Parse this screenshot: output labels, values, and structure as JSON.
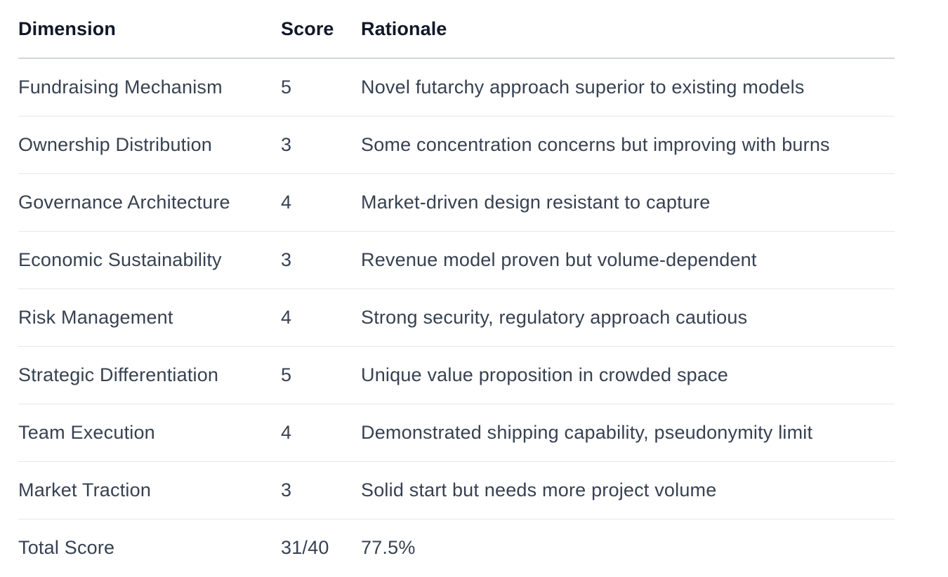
{
  "table": {
    "headers": {
      "dimension": "Dimension",
      "score": "Score",
      "rationale": "Rationale"
    },
    "rows": [
      {
        "dimension": "Fundraising Mechanism",
        "score": "5",
        "rationale": "Novel futarchy approach superior to existing models"
      },
      {
        "dimension": "Ownership Distribution",
        "score": "3",
        "rationale": "Some concentration concerns but improving with burns"
      },
      {
        "dimension": "Governance Architecture",
        "score": "4",
        "rationale": "Market-driven design resistant to capture"
      },
      {
        "dimension": "Economic Sustainability",
        "score": "3",
        "rationale": "Revenue model proven but volume-dependent"
      },
      {
        "dimension": "Risk Management",
        "score": "4",
        "rationale": "Strong security, regulatory approach cautious"
      },
      {
        "dimension": "Strategic Differentiation",
        "score": "5",
        "rationale": "Unique value proposition in crowded space"
      },
      {
        "dimension": "Team Execution",
        "score": "4",
        "rationale": "Demonstrated shipping capability, pseudonymity limit"
      },
      {
        "dimension": "Market Traction",
        "score": "3",
        "rationale": "Solid start but needs more project volume"
      },
      {
        "dimension": "Total Score",
        "score": "31/40",
        "rationale": "77.5%"
      }
    ]
  }
}
